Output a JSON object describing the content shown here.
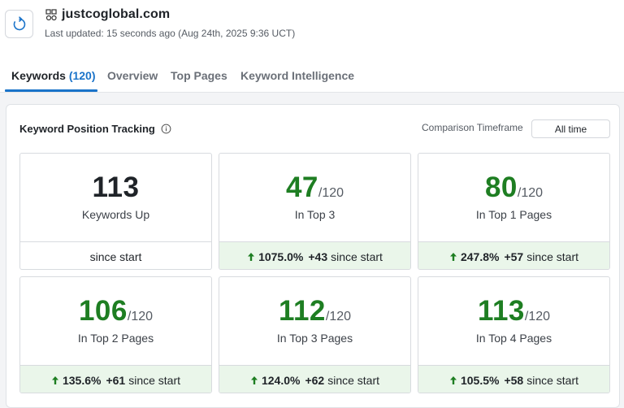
{
  "header": {
    "site_name": "justcoglobal.com",
    "last_updated": "Last updated: 15 seconds ago (Aug 24th, 2025 9:36 UCT)",
    "refresh_icon": "refresh-icon",
    "favicon_icon": "site-favicon-icon"
  },
  "tabs": [
    {
      "label": "Keywords",
      "count": "(120)",
      "active": true
    },
    {
      "label": "Overview"
    },
    {
      "label": "Top Pages"
    },
    {
      "label": "Keyword Intelligence"
    }
  ],
  "panel": {
    "title": "Keyword Position Tracking",
    "info_icon": "info-icon",
    "comparison_label": "Comparison Timeframe",
    "comparison_value": "All time"
  },
  "cards": [
    {
      "value": "113",
      "total": "",
      "label": "Keywords Up",
      "change_pct": "",
      "change_delta": "",
      "since": "since start",
      "color": "#1f2328"
    },
    {
      "value": "47",
      "total": "/120",
      "label": "In Top 3",
      "change_pct": "1075.0%",
      "change_delta": "+43",
      "since": "since start",
      "color": "#1e7e22"
    },
    {
      "value": "80",
      "total": "/120",
      "label": "In Top 1 Pages",
      "change_pct": "247.8%",
      "change_delta": "+57",
      "since": "since start",
      "color": "#1e7e22"
    },
    {
      "value": "106",
      "total": "/120",
      "label": "In Top 2 Pages",
      "change_pct": "135.6%",
      "change_delta": "+61",
      "since": "since start",
      "color": "#1e7e22"
    },
    {
      "value": "112",
      "total": "/120",
      "label": "In Top 3 Pages",
      "change_pct": "124.0%",
      "change_delta": "+62",
      "since": "since start",
      "color": "#1e7e22"
    },
    {
      "value": "113",
      "total": "/120",
      "label": "In Top 4 Pages",
      "change_pct": "105.5%",
      "change_delta": "+58",
      "since": "since start",
      "color": "#1e7e22"
    }
  ],
  "colors": {
    "accent": "#1a73c9",
    "positive": "#1e7e22",
    "positive_bg": "#eaf6ea"
  }
}
